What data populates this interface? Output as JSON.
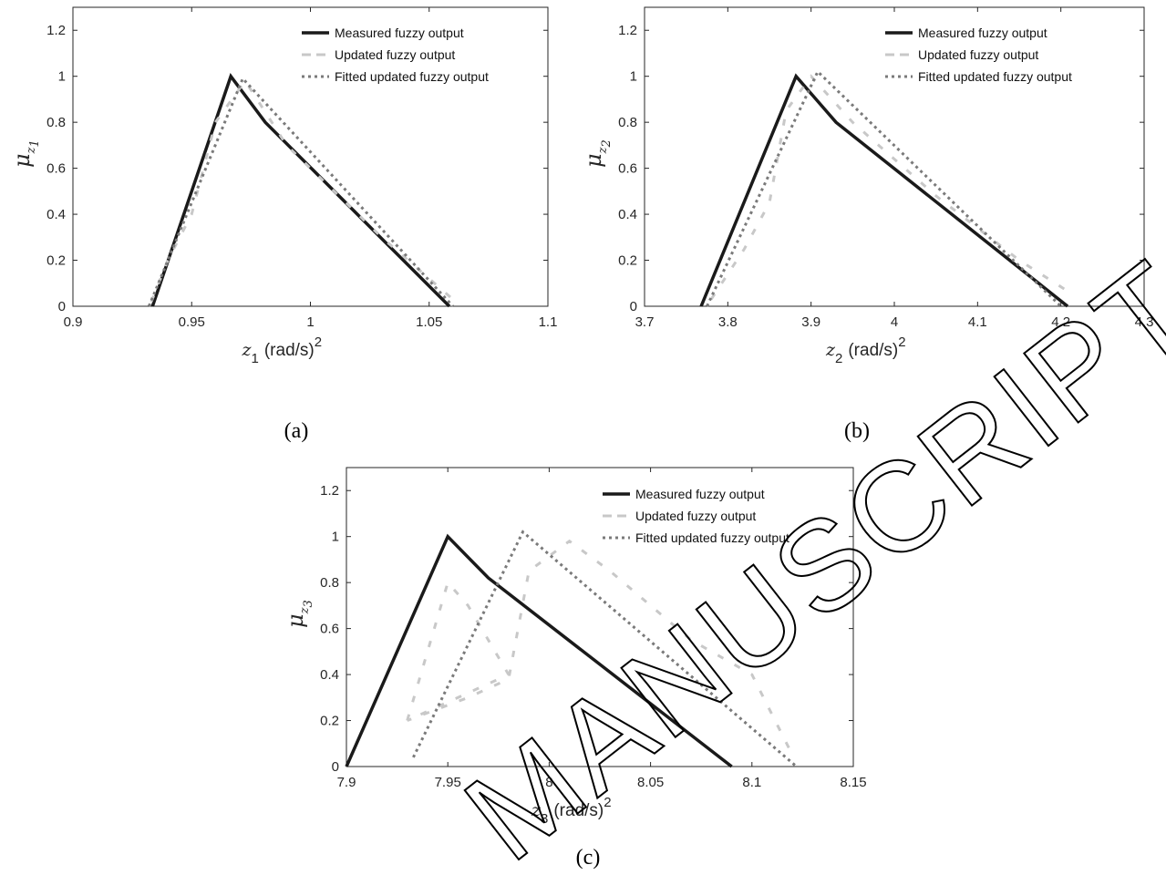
{
  "legend_labels": [
    "Measured fuzzy output",
    "Updated fuzzy output",
    "Fitted updated fuzzy output"
  ],
  "watermark": "MANUSCRIPT",
  "chart_data": [
    {
      "type": "line",
      "caption": "(a)",
      "ylabel": "μz1",
      "xlabel": "z1 (rad/s)2",
      "xlim": [
        0.9,
        1.1
      ],
      "ylim": [
        0,
        1.3
      ],
      "xticks": [
        "0.9",
        "0.95",
        "1",
        "1.05",
        "1.1"
      ],
      "yticks": [
        "0",
        "0.2",
        "0.4",
        "0.6",
        "0.8",
        "1",
        "1.2"
      ],
      "legend_position": "top-right",
      "series": [
        {
          "name": "Measured fuzzy output",
          "style": "solid",
          "color": "#1a1a1a",
          "points": [
            [
              0.9335,
              0
            ],
            [
              0.9665,
              1.0
            ],
            [
              0.981,
              0.8
            ],
            [
              1.0585,
              0
            ]
          ]
        },
        {
          "name": "Updated fuzzy output",
          "style": "dash",
          "color": "#c8c8c8",
          "points": [
            [
              0.933,
              0.02
            ],
            [
              0.94,
              0.2
            ],
            [
              0.95,
              0.4
            ],
            [
              0.96,
              0.8
            ],
            [
              0.9725,
              0.98
            ],
            [
              0.99,
              0.7
            ],
            [
              1.01,
              0.5
            ],
            [
              1.03,
              0.3
            ],
            [
              1.06,
              0.03
            ]
          ]
        },
        {
          "name": "Fitted updated fuzzy output",
          "style": "dot",
          "color": "#7a7a7a",
          "points": [
            [
              0.932,
              0
            ],
            [
              0.9715,
              0.99
            ],
            [
              1.06,
              0
            ]
          ]
        }
      ]
    },
    {
      "type": "line",
      "caption": "(b)",
      "ylabel": "μz2",
      "xlabel": "z2 (rad/s)2",
      "xlim": [
        3.7,
        4.3
      ],
      "ylim": [
        0,
        1.3
      ],
      "xticks": [
        "3.7",
        "3.8",
        "3.9",
        "4",
        "4.1",
        "4.2",
        "4.3"
      ],
      "yticks": [
        "0",
        "0.2",
        "0.4",
        "0.6",
        "0.8",
        "1",
        "1.2"
      ],
      "legend_position": "top-right",
      "series": [
        {
          "name": "Measured fuzzy output",
          "style": "solid",
          "color": "#1a1a1a",
          "points": [
            [
              3.768,
              0
            ],
            [
              3.882,
              1.0
            ],
            [
              3.93,
              0.8
            ],
            [
              4.208,
              0
            ]
          ]
        },
        {
          "name": "Updated fuzzy output",
          "style": "dash",
          "color": "#c8c8c8",
          "points": [
            [
              3.78,
              0.03
            ],
            [
              3.82,
              0.25
            ],
            [
              3.85,
              0.45
            ],
            [
              3.87,
              0.85
            ],
            [
              3.9,
              1.0
            ],
            [
              3.95,
              0.8
            ],
            [
              4.05,
              0.48
            ],
            [
              4.15,
              0.2
            ],
            [
              4.215,
              0.05
            ]
          ]
        },
        {
          "name": "Fitted updated fuzzy output",
          "style": "dot",
          "color": "#7a7a7a",
          "points": [
            [
              3.775,
              0
            ],
            [
              3.908,
              1.02
            ],
            [
              4.2,
              0
            ]
          ]
        }
      ]
    },
    {
      "type": "line",
      "caption": "(c)",
      "ylabel": "μz3",
      "xlabel": "z3 (rad/s)2",
      "xlim": [
        7.9,
        8.15
      ],
      "ylim": [
        0,
        1.3
      ],
      "xticks": [
        "7.9",
        "7.95",
        "8",
        "8.05",
        "8.1",
        "8.15"
      ],
      "yticks": [
        "0",
        "0.2",
        "0.4",
        "0.6",
        "0.8",
        "1",
        "1.2"
      ],
      "legend_position": "top-right",
      "series": [
        {
          "name": "Measured fuzzy output",
          "style": "solid",
          "color": "#1a1a1a",
          "points": [
            [
              7.9,
              0
            ],
            [
              7.95,
              1.0
            ],
            [
              7.97,
              0.82
            ],
            [
              8.09,
              0
            ]
          ]
        },
        {
          "name": "Updated fuzzy output",
          "style": "dash",
          "color": "#c8c8c8",
          "points": [
            [
              7.93,
              0.2
            ],
            [
              7.95,
              0.8
            ],
            [
              7.96,
              0.7
            ],
            [
              7.98,
              0.4
            ],
            [
              7.93,
              0.2
            ],
            [
              7.96,
              0.3
            ],
            [
              7.98,
              0.38
            ],
            [
              7.99,
              0.85
            ],
            [
              8.01,
              0.98
            ],
            [
              8.03,
              0.85
            ],
            [
              8.07,
              0.55
            ],
            [
              8.1,
              0.4
            ],
            [
              8.12,
              0.05
            ]
          ]
        },
        {
          "name": "Fitted updated fuzzy output",
          "style": "dot",
          "color": "#7a7a7a",
          "points": [
            [
              7.933,
              0.04
            ],
            [
              7.987,
              1.02
            ],
            [
              8.122,
              0
            ]
          ]
        }
      ]
    }
  ]
}
